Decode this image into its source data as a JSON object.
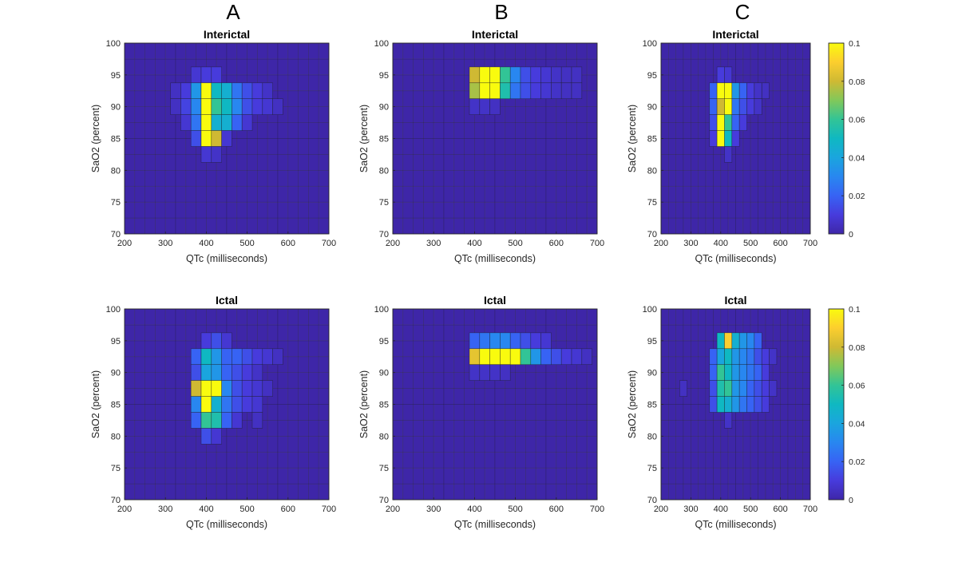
{
  "column_labels": [
    "A",
    "B",
    "C"
  ],
  "colormap": "parula",
  "chart_data": [
    {
      "id": "A-interictal",
      "type": "heatmap",
      "column": "A",
      "title": "Interictal",
      "xlabel": "QTc (milliseconds)",
      "ylabel": "SaO2 (percent)",
      "xlim": [
        200,
        700
      ],
      "ylim": [
        70,
        100
      ],
      "x_bin_width": 25,
      "y_bin_width": 2.5,
      "xticks": [
        200,
        300,
        400,
        500,
        600,
        700
      ],
      "yticks": [
        70,
        75,
        80,
        85,
        90,
        95,
        100
      ],
      "clim": [
        0,
        0.1
      ],
      "cells": [
        [
          325,
          92.5,
          0.005
        ],
        [
          325,
          90,
          0.005
        ],
        [
          350,
          92.5,
          0.01
        ],
        [
          350,
          90,
          0.012
        ],
        [
          350,
          87.5,
          0.008
        ],
        [
          375,
          95,
          0.008
        ],
        [
          375,
          92.5,
          0.035
        ],
        [
          375,
          90,
          0.03
        ],
        [
          375,
          87.5,
          0.025
        ],
        [
          375,
          85,
          0.015
        ],
        [
          400,
          95,
          0.01
        ],
        [
          400,
          92.5,
          0.1
        ],
        [
          400,
          90,
          0.1
        ],
        [
          400,
          87.5,
          0.1
        ],
        [
          400,
          85,
          0.1
        ],
        [
          400,
          82.5,
          0.008
        ],
        [
          425,
          95,
          0.01
        ],
        [
          425,
          92.5,
          0.05
        ],
        [
          425,
          90,
          0.06
        ],
        [
          425,
          87.5,
          0.045
        ],
        [
          425,
          85,
          0.08
        ],
        [
          425,
          82.5,
          0.006
        ],
        [
          450,
          92.5,
          0.045
        ],
        [
          450,
          90,
          0.05
        ],
        [
          450,
          87.5,
          0.045
        ],
        [
          450,
          85,
          0.008
        ],
        [
          475,
          92.5,
          0.025
        ],
        [
          475,
          90,
          0.03
        ],
        [
          475,
          87.5,
          0.02
        ],
        [
          500,
          92.5,
          0.015
        ],
        [
          500,
          90,
          0.015
        ],
        [
          500,
          87.5,
          0.008
        ],
        [
          525,
          92.5,
          0.01
        ],
        [
          525,
          90,
          0.01
        ],
        [
          550,
          92.5,
          0.006
        ],
        [
          550,
          90,
          0.008
        ],
        [
          575,
          90,
          0.005
        ]
      ]
    },
    {
      "id": "B-interictal",
      "type": "heatmap",
      "column": "B",
      "title": "Interictal",
      "xlabel": "QTc (milliseconds)",
      "ylabel": "SaO2 (percent)",
      "xlim": [
        200,
        700
      ],
      "ylim": [
        70,
        100
      ],
      "x_bin_width": 25,
      "y_bin_width": 2.5,
      "xticks": [
        200,
        300,
        400,
        500,
        600,
        700
      ],
      "yticks": [
        70,
        75,
        80,
        85,
        90,
        95,
        100
      ],
      "clim": [
        0,
        0.1
      ],
      "cells": [
        [
          400,
          95,
          0.08
        ],
        [
          400,
          92.5,
          0.075
        ],
        [
          400,
          90,
          0.006
        ],
        [
          425,
          95,
          0.1
        ],
        [
          425,
          92.5,
          0.1
        ],
        [
          425,
          90,
          0.006
        ],
        [
          450,
          95,
          0.1
        ],
        [
          450,
          92.5,
          0.1
        ],
        [
          450,
          90,
          0.005
        ],
        [
          475,
          95,
          0.06
        ],
        [
          475,
          92.5,
          0.055
        ],
        [
          500,
          95,
          0.03
        ],
        [
          500,
          92.5,
          0.025
        ],
        [
          525,
          95,
          0.015
        ],
        [
          525,
          92.5,
          0.015
        ],
        [
          550,
          95,
          0.01
        ],
        [
          550,
          92.5,
          0.01
        ],
        [
          575,
          95,
          0.008
        ],
        [
          575,
          92.5,
          0.008
        ],
        [
          600,
          95,
          0.006
        ],
        [
          600,
          92.5,
          0.006
        ],
        [
          625,
          95,
          0.005
        ],
        [
          625,
          92.5,
          0.005
        ],
        [
          650,
          95,
          0.005
        ],
        [
          650,
          92.5,
          0.005
        ]
      ]
    },
    {
      "id": "C-interictal",
      "type": "heatmap",
      "column": "C",
      "title": "Interictal",
      "xlabel": "QTc (milliseconds)",
      "ylabel": "SaO2 (percent)",
      "xlim": [
        200,
        700
      ],
      "ylim": [
        70,
        100
      ],
      "x_bin_width": 25,
      "y_bin_width": 2.5,
      "xticks": [
        200,
        300,
        400,
        500,
        600,
        700
      ],
      "yticks": [
        70,
        75,
        80,
        85,
        90,
        95,
        100
      ],
      "clim": [
        0,
        0.1
      ],
      "cells": [
        [
          375,
          92.5,
          0.02
        ],
        [
          375,
          90,
          0.02
        ],
        [
          375,
          87.5,
          0.015
        ],
        [
          375,
          85,
          0.01
        ],
        [
          400,
          95,
          0.01
        ],
        [
          400,
          92.5,
          0.1
        ],
        [
          400,
          90,
          0.08
        ],
        [
          400,
          87.5,
          0.1
        ],
        [
          400,
          85,
          0.1
        ],
        [
          425,
          95,
          0.008
        ],
        [
          425,
          92.5,
          0.1
        ],
        [
          425,
          90,
          0.1
        ],
        [
          425,
          87.5,
          0.06
        ],
        [
          425,
          85,
          0.05
        ],
        [
          425,
          82.5,
          0.006
        ],
        [
          450,
          92.5,
          0.035
        ],
        [
          450,
          90,
          0.025
        ],
        [
          450,
          87.5,
          0.02
        ],
        [
          450,
          85,
          0.01
        ],
        [
          475,
          92.5,
          0.02
        ],
        [
          475,
          90,
          0.015
        ],
        [
          475,
          87.5,
          0.01
        ],
        [
          500,
          92.5,
          0.01
        ],
        [
          500,
          90,
          0.01
        ],
        [
          525,
          92.5,
          0.006
        ],
        [
          525,
          90,
          0.006
        ],
        [
          550,
          92.5,
          0.005
        ]
      ]
    },
    {
      "id": "A-ictal",
      "type": "heatmap",
      "column": "A",
      "title": "Ictal",
      "xlabel": "QTc (milliseconds)",
      "ylabel": "SaO2 (percent)",
      "xlim": [
        200,
        700
      ],
      "ylim": [
        70,
        100
      ],
      "x_bin_width": 25,
      "y_bin_width": 2.5,
      "xticks": [
        200,
        300,
        400,
        500,
        600,
        700
      ],
      "yticks": [
        70,
        75,
        80,
        85,
        90,
        95,
        100
      ],
      "clim": [
        0,
        0.1
      ],
      "cells": [
        [
          375,
          92.5,
          0.02
        ],
        [
          375,
          90,
          0.015
        ],
        [
          375,
          87.5,
          0.08
        ],
        [
          375,
          85,
          0.03
        ],
        [
          375,
          82.5,
          0.02
        ],
        [
          400,
          95,
          0.01
        ],
        [
          400,
          92.5,
          0.05
        ],
        [
          400,
          90,
          0.04
        ],
        [
          400,
          87.5,
          0.1
        ],
        [
          400,
          85,
          0.1
        ],
        [
          400,
          82.5,
          0.06
        ],
        [
          400,
          80,
          0.015
        ],
        [
          425,
          95,
          0.015
        ],
        [
          425,
          92.5,
          0.035
        ],
        [
          425,
          90,
          0.035
        ],
        [
          425,
          87.5,
          0.1
        ],
        [
          425,
          85,
          0.045
        ],
        [
          425,
          82.5,
          0.055
        ],
        [
          425,
          80,
          0.008
        ],
        [
          450,
          95,
          0.008
        ],
        [
          450,
          92.5,
          0.02
        ],
        [
          450,
          90,
          0.02
        ],
        [
          450,
          87.5,
          0.03
        ],
        [
          450,
          85,
          0.025
        ],
        [
          450,
          82.5,
          0.02
        ],
        [
          475,
          92.5,
          0.02
        ],
        [
          475,
          90,
          0.015
        ],
        [
          475,
          87.5,
          0.015
        ],
        [
          475,
          85,
          0.015
        ],
        [
          475,
          82.5,
          0.008
        ],
        [
          500,
          92.5,
          0.015
        ],
        [
          500,
          90,
          0.01
        ],
        [
          500,
          87.5,
          0.01
        ],
        [
          500,
          85,
          0.01
        ],
        [
          525,
          92.5,
          0.01
        ],
        [
          525,
          90,
          0.006
        ],
        [
          525,
          87.5,
          0.008
        ],
        [
          525,
          85,
          0.008
        ],
        [
          525,
          82.5,
          0.005
        ],
        [
          550,
          92.5,
          0.008
        ],
        [
          550,
          87.5,
          0.005
        ],
        [
          575,
          92.5,
          0.005
        ]
      ]
    },
    {
      "id": "B-ictal",
      "type": "heatmap",
      "column": "B",
      "title": "Ictal",
      "xlabel": "QTc (milliseconds)",
      "ylabel": "SaO2 (percent)",
      "xlim": [
        200,
        700
      ],
      "ylim": [
        70,
        100
      ],
      "x_bin_width": 25,
      "y_bin_width": 2.5,
      "xticks": [
        200,
        300,
        400,
        500,
        600,
        700
      ],
      "yticks": [
        70,
        75,
        80,
        85,
        90,
        95,
        100
      ],
      "clim": [
        0,
        0.1
      ],
      "cells": [
        [
          400,
          95,
          0.02
        ],
        [
          400,
          92.5,
          0.085
        ],
        [
          400,
          90,
          0.006
        ],
        [
          425,
          95,
          0.025
        ],
        [
          425,
          92.5,
          0.1
        ],
        [
          425,
          90,
          0.006
        ],
        [
          450,
          95,
          0.03
        ],
        [
          450,
          92.5,
          0.1
        ],
        [
          450,
          90,
          0.006
        ],
        [
          475,
          95,
          0.03
        ],
        [
          475,
          92.5,
          0.1
        ],
        [
          475,
          90,
          0.005
        ],
        [
          500,
          95,
          0.02
        ],
        [
          500,
          92.5,
          0.1
        ],
        [
          525,
          95,
          0.015
        ],
        [
          525,
          92.5,
          0.06
        ],
        [
          550,
          95,
          0.01
        ],
        [
          550,
          92.5,
          0.035
        ],
        [
          575,
          95,
          0.008
        ],
        [
          575,
          92.5,
          0.02
        ],
        [
          600,
          92.5,
          0.015
        ],
        [
          625,
          92.5,
          0.01
        ],
        [
          650,
          92.5,
          0.008
        ],
        [
          675,
          92.5,
          0.005
        ]
      ]
    },
    {
      "id": "C-ictal",
      "type": "heatmap",
      "column": "C",
      "title": "Ictal",
      "xlabel": "QTc (milliseconds)",
      "ylabel": "SaO2 (percent)",
      "xlim": [
        200,
        700
      ],
      "ylim": [
        70,
        100
      ],
      "x_bin_width": 25,
      "y_bin_width": 2.5,
      "xticks": [
        200,
        300,
        400,
        500,
        600,
        700
      ],
      "yticks": [
        70,
        75,
        80,
        85,
        90,
        95,
        100
      ],
      "clim": [
        0,
        0.1
      ],
      "cells": [
        [
          275,
          87.5,
          0.005
        ],
        [
          375,
          92.5,
          0.02
        ],
        [
          375,
          90,
          0.02
        ],
        [
          375,
          87.5,
          0.015
        ],
        [
          375,
          85,
          0.015
        ],
        [
          400,
          95,
          0.05
        ],
        [
          400,
          92.5,
          0.04
        ],
        [
          400,
          90,
          0.06
        ],
        [
          400,
          87.5,
          0.055
        ],
        [
          400,
          85,
          0.05
        ],
        [
          425,
          95,
          0.09
        ],
        [
          425,
          92.5,
          0.05
        ],
        [
          425,
          90,
          0.05
        ],
        [
          425,
          87.5,
          0.06
        ],
        [
          425,
          85,
          0.045
        ],
        [
          425,
          82.5,
          0.006
        ],
        [
          450,
          95,
          0.045
        ],
        [
          450,
          92.5,
          0.035
        ],
        [
          450,
          90,
          0.035
        ],
        [
          450,
          87.5,
          0.035
        ],
        [
          450,
          85,
          0.035
        ],
        [
          475,
          95,
          0.035
        ],
        [
          475,
          92.5,
          0.03
        ],
        [
          475,
          90,
          0.03
        ],
        [
          475,
          87.5,
          0.03
        ],
        [
          475,
          85,
          0.025
        ],
        [
          500,
          95,
          0.03
        ],
        [
          500,
          92.5,
          0.025
        ],
        [
          500,
          90,
          0.025
        ],
        [
          500,
          87.5,
          0.02
        ],
        [
          500,
          85,
          0.02
        ],
        [
          525,
          95,
          0.02
        ],
        [
          525,
          92.5,
          0.015
        ],
        [
          525,
          90,
          0.02
        ],
        [
          525,
          87.5,
          0.015
        ],
        [
          525,
          85,
          0.015
        ],
        [
          550,
          92.5,
          0.01
        ],
        [
          550,
          90,
          0.01
        ],
        [
          550,
          87.5,
          0.01
        ],
        [
          550,
          85,
          0.01
        ],
        [
          575,
          92.5,
          0.006
        ],
        [
          575,
          87.5,
          0.006
        ]
      ]
    }
  ],
  "colorbars": [
    {
      "id": "cb-top",
      "clim": [
        0,
        0.1
      ],
      "ticks": [
        0,
        0.02,
        0.04,
        0.06,
        0.08,
        0.1
      ],
      "tick_labels": [
        "0",
        "0.02",
        "0.04",
        "0.06",
        "0.08",
        "0.1"
      ]
    },
    {
      "id": "cb-bottom",
      "clim": [
        0,
        0.1
      ],
      "ticks": [
        0,
        0.02,
        0.04,
        0.06,
        0.08,
        0.1
      ],
      "tick_labels": [
        "0",
        "0.02",
        "0.04",
        "0.06",
        "0.08",
        "0.1"
      ]
    }
  ]
}
